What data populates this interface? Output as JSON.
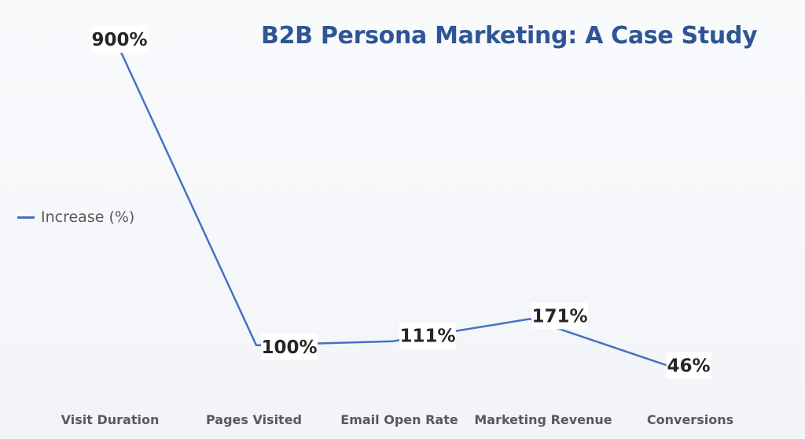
{
  "colors": {
    "line": "#4472c4",
    "title": "#2f5597",
    "label_box": "#ffffff"
  },
  "chart_data": {
    "type": "line",
    "title": "B2B Persona Marketing: A Case Study",
    "xlabel": "",
    "ylabel": "",
    "categories": [
      "Visit Duration",
      "Pages Visited",
      "Email Open Rate",
      "Marketing Revenue",
      "Conversions"
    ],
    "series": [
      {
        "name": "Increase (%)",
        "values": [
          900,
          100,
          111,
          171,
          46
        ],
        "labels": [
          "900%",
          "100%",
          "111%",
          "171%",
          "46%"
        ]
      }
    ],
    "ylim": [
      0,
      900
    ],
    "grid": false,
    "legend": "left"
  }
}
